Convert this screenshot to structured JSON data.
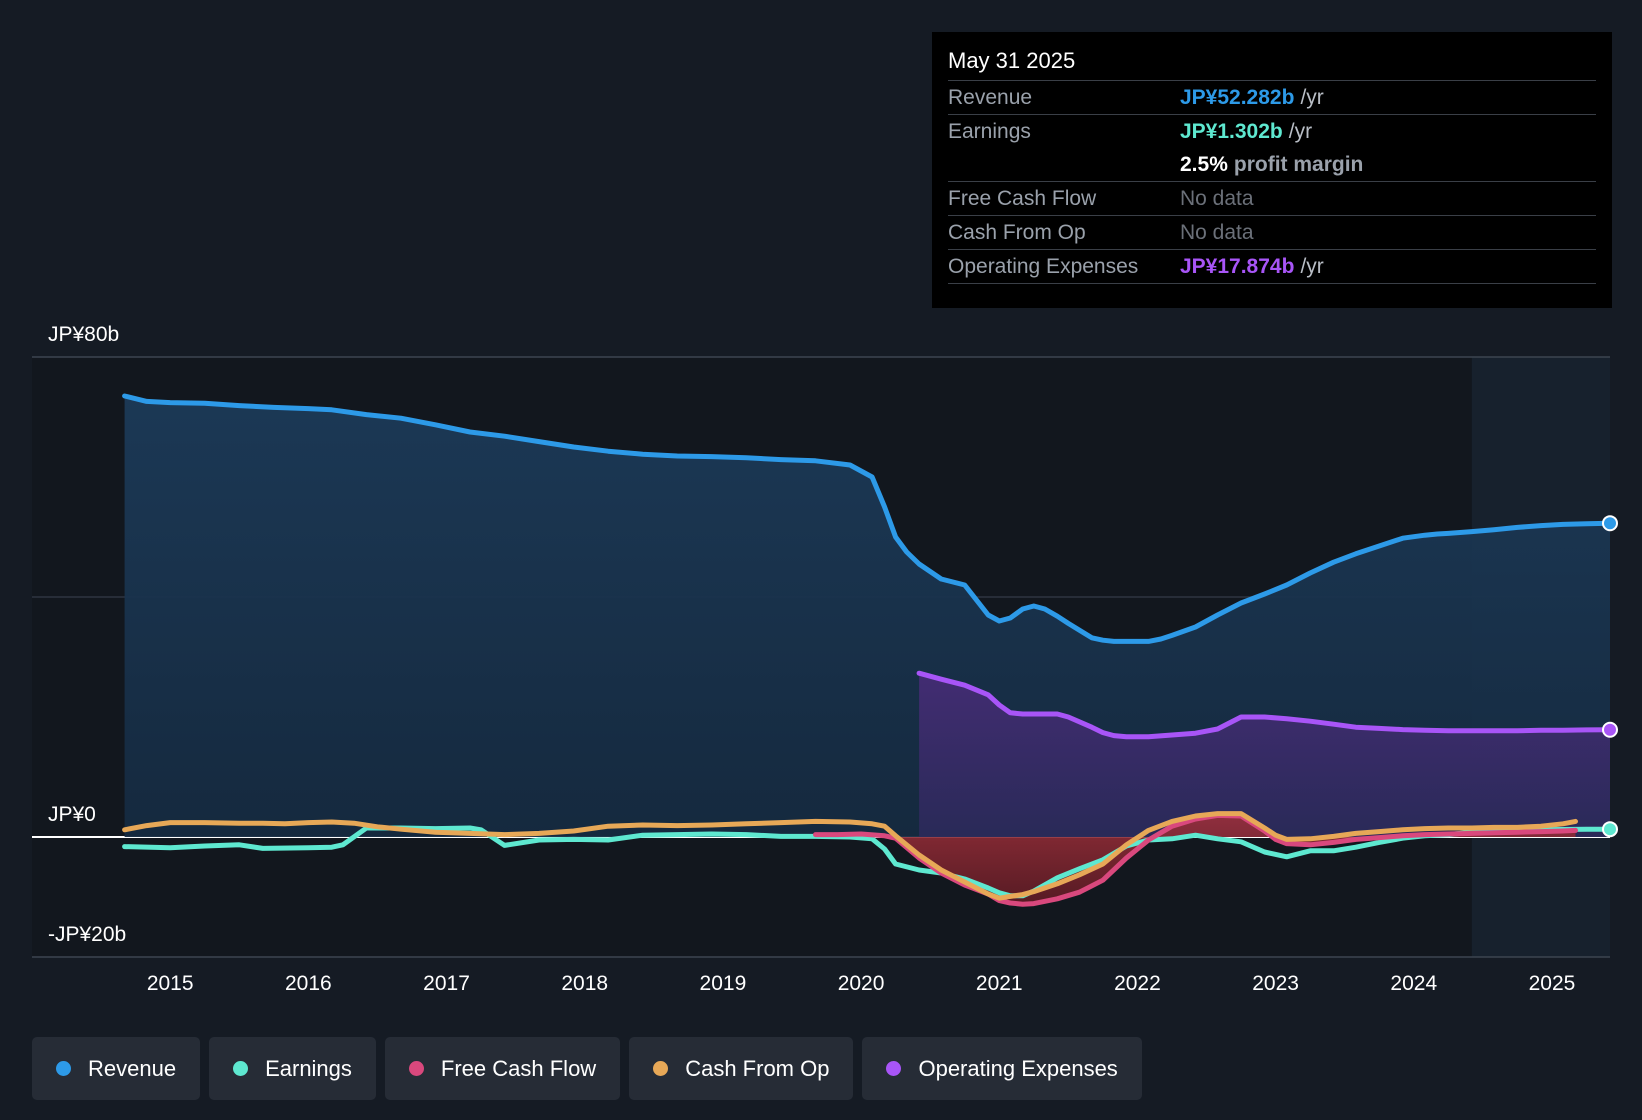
{
  "tooltip": {
    "date": "May 31 2025",
    "rows": [
      {
        "label": "Revenue",
        "value": "JP¥52.282b",
        "unit": "/yr",
        "color": "#2d9ae8"
      },
      {
        "label": "Earnings",
        "value": "JP¥1.302b",
        "unit": "/yr",
        "color": "#5ee8d0"
      },
      {
        "label": "",
        "value": "2.5%",
        "unit": "profit margin",
        "color": "#ffffff"
      },
      {
        "label": "Free Cash Flow",
        "value": "No data"
      },
      {
        "label": "Cash From Op",
        "value": "No data"
      },
      {
        "label": "Operating Expenses",
        "value": "JP¥17.874b",
        "unit": "/yr",
        "color": "#a855f7"
      }
    ]
  },
  "legend": [
    {
      "label": "Revenue",
      "color": "#2d9ae8"
    },
    {
      "label": "Earnings",
      "color": "#5ee8d0"
    },
    {
      "label": "Free Cash Flow",
      "color": "#d9487d"
    },
    {
      "label": "Cash From Op",
      "color": "#e7a857"
    },
    {
      "label": "Operating Expenses",
      "color": "#a855f7"
    }
  ],
  "chart_data": {
    "type": "area",
    "y_labels": [
      "JP¥80b",
      "JP¥0",
      "-JP¥20b"
    ],
    "ylim": [
      -20,
      80
    ],
    "xlim": [
      2014.0,
      2025.42
    ],
    "x_ticks": [
      2015,
      2016,
      2017,
      2018,
      2019,
      2020,
      2021,
      2022,
      2023,
      2024,
      2025
    ],
    "x_tick_labels": [
      "2015",
      "2016",
      "2017",
      "2018",
      "2019",
      "2020",
      "2021",
      "2022",
      "2023",
      "2024",
      "2025"
    ],
    "forecast_start": 2024.42,
    "grid": true,
    "legend_position": "bottom",
    "series": [
      {
        "name": "Revenue",
        "color": "#2d9ae8",
        "fill": true,
        "x": [
          2014.67,
          2014.83,
          2015.0,
          2015.25,
          2015.5,
          2015.75,
          2016.0,
          2016.17,
          2016.42,
          2016.67,
          2016.92,
          2017.17,
          2017.42,
          2017.67,
          2017.92,
          2018.17,
          2018.42,
          2018.67,
          2018.92,
          2019.17,
          2019.42,
          2019.67,
          2019.92,
          2020.08,
          2020.17,
          2020.25,
          2020.33,
          2020.42,
          2020.58,
          2020.75,
          2020.92,
          2021.0,
          2021.08,
          2021.17,
          2021.25,
          2021.33,
          2021.42,
          2021.5,
          2021.67,
          2021.75,
          2021.83,
          2021.92,
          2022.08,
          2022.17,
          2022.25,
          2022.42,
          2022.58,
          2022.75,
          2022.92,
          2023.08,
          2023.25,
          2023.42,
          2023.58,
          2023.75,
          2023.92,
          2024.08,
          2024.17,
          2024.25,
          2024.42,
          2024.58,
          2024.75,
          2024.92,
          2025.08,
          2025.25,
          2025.42
        ],
        "y": [
          73.5,
          72.6,
          72.4,
          72.3,
          71.9,
          71.6,
          71.4,
          71.2,
          70.4,
          69.8,
          68.7,
          67.5,
          66.8,
          65.9,
          65.0,
          64.3,
          63.8,
          63.5,
          63.4,
          63.2,
          62.9,
          62.7,
          62.0,
          60.0,
          55.0,
          50.0,
          47.5,
          45.5,
          43.0,
          42.0,
          37.0,
          36.0,
          36.5,
          38.0,
          38.5,
          38.0,
          36.8,
          35.6,
          33.2,
          32.8,
          32.6,
          32.6,
          32.6,
          33.0,
          33.6,
          35.0,
          37.0,
          39.0,
          40.5,
          42.0,
          44.0,
          45.8,
          47.2,
          48.5,
          49.8,
          50.3,
          50.5,
          50.6,
          50.9,
          51.2,
          51.6,
          51.9,
          52.1,
          52.2,
          52.3
        ]
      },
      {
        "name": "Operating Expenses",
        "color": "#a855f7",
        "fill": true,
        "x": [
          2020.42,
          2020.58,
          2020.75,
          2020.92,
          2021.0,
          2021.08,
          2021.17,
          2021.25,
          2021.33,
          2021.42,
          2021.5,
          2021.67,
          2021.75,
          2021.83,
          2021.92,
          2022.08,
          2022.25,
          2022.42,
          2022.58,
          2022.75,
          2022.92,
          2023.08,
          2023.25,
          2023.42,
          2023.58,
          2023.75,
          2023.92,
          2024.08,
          2024.25,
          2024.42,
          2024.58,
          2024.75,
          2024.92,
          2025.08,
          2025.25,
          2025.42
        ],
        "y": [
          27.3,
          26.3,
          25.3,
          23.7,
          22.0,
          20.7,
          20.5,
          20.5,
          20.5,
          20.5,
          20.0,
          18.3,
          17.4,
          16.9,
          16.7,
          16.7,
          17.0,
          17.3,
          18.0,
          20.0,
          20.0,
          19.7,
          19.3,
          18.8,
          18.3,
          18.1,
          17.9,
          17.8,
          17.7,
          17.7,
          17.7,
          17.7,
          17.8,
          17.8,
          17.85,
          17.874
        ]
      },
      {
        "name": "Earnings",
        "color": "#5ee8d0",
        "fill": false,
        "x": [
          2014.67,
          2015.0,
          2015.25,
          2015.5,
          2015.67,
          2016.0,
          2016.17,
          2016.25,
          2016.42,
          2016.67,
          2016.92,
          2017.17,
          2017.25,
          2017.42,
          2017.67,
          2017.92,
          2018.17,
          2018.42,
          2018.67,
          2018.92,
          2019.17,
          2019.42,
          2019.67,
          2019.92,
          2020.08,
          2020.17,
          2020.25,
          2020.42,
          2020.58,
          2020.75,
          2020.92,
          2021.0,
          2021.08,
          2021.17,
          2021.25,
          2021.42,
          2021.58,
          2021.75,
          2021.92,
          2022.08,
          2022.25,
          2022.42,
          2022.58,
          2022.75,
          2022.92,
          2023.08,
          2023.25,
          2023.42,
          2023.58,
          2023.75,
          2023.92,
          2024.08,
          2024.25,
          2024.42,
          2024.58,
          2024.75,
          2024.92,
          2025.08,
          2025.25,
          2025.42
        ],
        "y": [
          -1.6,
          -1.8,
          -1.5,
          -1.3,
          -1.9,
          -1.8,
          -1.7,
          -1.3,
          1.5,
          1.5,
          1.4,
          1.5,
          1.2,
          -1.4,
          -0.5,
          -0.4,
          -0.5,
          0.3,
          0.4,
          0.5,
          0.4,
          0.1,
          0.1,
          0.0,
          -0.3,
          -2.0,
          -4.5,
          -5.5,
          -6.0,
          -7.0,
          -8.5,
          -9.3,
          -9.8,
          -9.8,
          -9.0,
          -6.8,
          -5.3,
          -3.8,
          -1.5,
          -0.5,
          -0.3,
          0.3,
          -0.3,
          -0.8,
          -2.5,
          -3.3,
          -2.3,
          -2.3,
          -1.7,
          -0.9,
          -0.2,
          0.2,
          0.4,
          0.8,
          1.1,
          1.2,
          1.2,
          1.25,
          1.28,
          1.302
        ]
      },
      {
        "name": "Free Cash Flow",
        "color": "#d9487d",
        "fill": true,
        "x": [
          2019.67,
          2019.83,
          2020.0,
          2020.17,
          2020.25,
          2020.42,
          2020.58,
          2020.75,
          2020.92,
          2021.0,
          2021.08,
          2021.17,
          2021.25,
          2021.42,
          2021.58,
          2021.75,
          2021.92,
          2022.08,
          2022.25,
          2022.42,
          2022.58,
          2022.75,
          2022.92,
          2023.0,
          2023.08,
          2023.25,
          2023.42,
          2023.58,
          2023.75,
          2023.92,
          2024.08,
          2024.25,
          2024.42,
          2024.58,
          2024.75,
          2024.92,
          2025.08,
          2025.17
        ],
        "y": [
          0.4,
          0.4,
          0.5,
          0.2,
          -0.2,
          -3.5,
          -6.0,
          -8.0,
          -9.5,
          -10.6,
          -11.0,
          -11.2,
          -11.1,
          -10.3,
          -9.2,
          -7.2,
          -3.5,
          -0.5,
          1.8,
          3.0,
          3.6,
          3.5,
          1.0,
          -0.4,
          -1.1,
          -1.3,
          -0.9,
          -0.4,
          -0.1,
          0.2,
          0.4,
          0.5,
          0.6,
          0.7,
          0.8,
          0.9,
          1.0,
          1.1
        ]
      },
      {
        "name": "Cash From Op",
        "color": "#e7a857",
        "fill": false,
        "x": [
          2014.67,
          2014.83,
          2015.0,
          2015.25,
          2015.5,
          2015.67,
          2015.83,
          2016.0,
          2016.17,
          2016.33,
          2016.5,
          2016.67,
          2016.92,
          2017.17,
          2017.42,
          2017.67,
          2017.92,
          2018.17,
          2018.42,
          2018.67,
          2018.92,
          2019.17,
          2019.42,
          2019.67,
          2019.92,
          2020.08,
          2020.17,
          2020.25,
          2020.42,
          2020.58,
          2020.75,
          2020.92,
          2021.0,
          2021.08,
          2021.17,
          2021.25,
          2021.42,
          2021.58,
          2021.75,
          2021.92,
          2022.08,
          2022.25,
          2022.42,
          2022.58,
          2022.75,
          2022.92,
          2023.0,
          2023.08,
          2023.25,
          2023.42,
          2023.58,
          2023.75,
          2023.92,
          2024.08,
          2024.25,
          2024.42,
          2024.58,
          2024.75,
          2024.92,
          2025.08,
          2025.17
        ],
        "y": [
          1.2,
          1.9,
          2.4,
          2.4,
          2.3,
          2.3,
          2.2,
          2.4,
          2.5,
          2.3,
          1.7,
          1.3,
          0.8,
          0.6,
          0.4,
          0.6,
          1.0,
          1.8,
          2.0,
          1.9,
          2.0,
          2.2,
          2.4,
          2.6,
          2.5,
          2.2,
          1.8,
          0.2,
          -3.0,
          -5.5,
          -7.5,
          -9.5,
          -10.2,
          -9.9,
          -9.6,
          -9.1,
          -7.8,
          -6.3,
          -4.5,
          -1.3,
          1.1,
          2.6,
          3.5,
          3.9,
          3.9,
          1.5,
          0.3,
          -0.4,
          -0.3,
          0.1,
          0.6,
          0.9,
          1.2,
          1.4,
          1.5,
          1.5,
          1.6,
          1.6,
          1.8,
          2.2,
          2.6
        ]
      }
    ]
  }
}
